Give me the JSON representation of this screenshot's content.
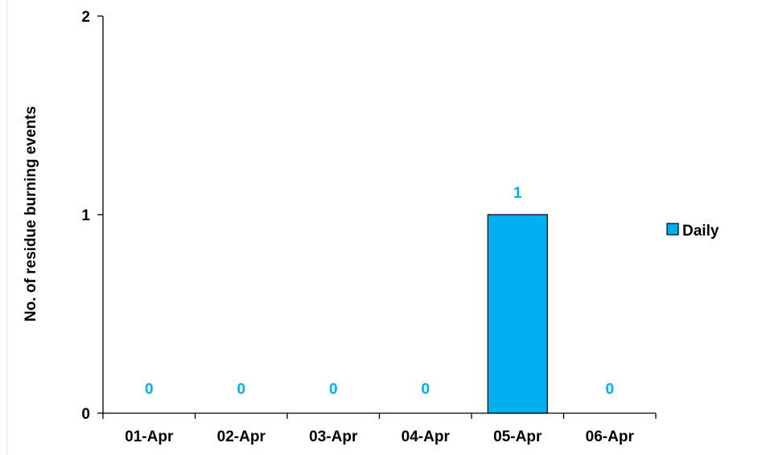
{
  "chart_data": {
    "type": "bar",
    "categories": [
      "01-Apr",
      "02-Apr",
      "03-Apr",
      "04-Apr",
      "05-Apr",
      "06-Apr"
    ],
    "series": [
      {
        "name": "Daily",
        "values": [
          0,
          0,
          0,
          0,
          1,
          0
        ]
      }
    ],
    "ylabel": "No. of residue burning events",
    "xlabel": "",
    "ylim": [
      0,
      2
    ],
    "yticks": [
      0,
      1,
      2
    ],
    "grid": false,
    "legend_position": "right",
    "bar_color": "#00B0F0",
    "data_label_color": "#00B0F0"
  }
}
